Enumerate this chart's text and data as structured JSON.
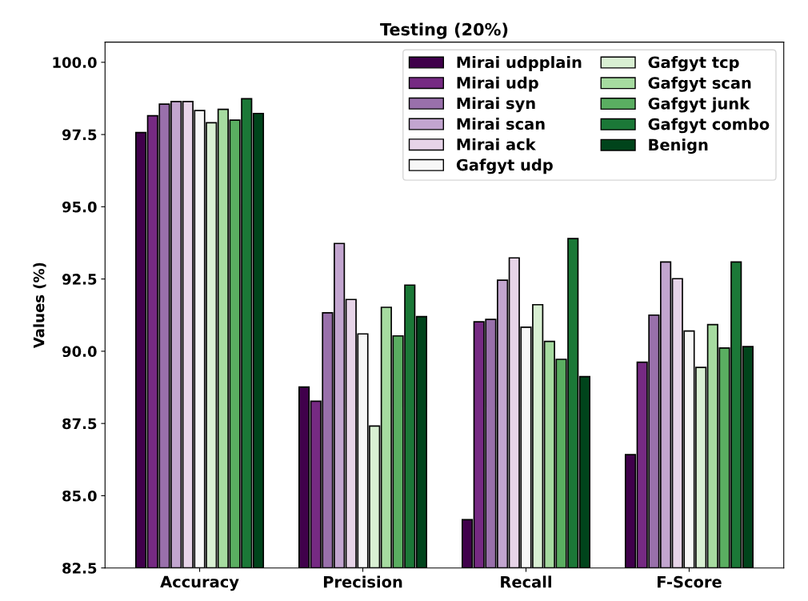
{
  "chart_data": {
    "type": "bar",
    "title": "Testing (20%)",
    "ylabel": "Values (%)",
    "categories": [
      "Accuracy",
      "Precision",
      "Recall",
      "F-Score"
    ],
    "ylim": [
      82.5,
      100.7
    ],
    "yticks": [
      {
        "value": 82.5,
        "label": "82.5"
      },
      {
        "value": 85.0,
        "label": "85.0"
      },
      {
        "value": 87.5,
        "label": "87.5"
      },
      {
        "value": 90.0,
        "label": "90.0"
      },
      {
        "value": 92.5,
        "label": "92.5"
      },
      {
        "value": 95.0,
        "label": "95.0"
      },
      {
        "value": 97.5,
        "label": "97.5"
      },
      {
        "value": 100.0,
        "label": "100.0"
      }
    ],
    "grid": false,
    "legend": "top right",
    "series": [
      {
        "name": "Mirai udpplain",
        "color": "#40004b",
        "values": [
          97.57,
          88.76,
          84.17,
          86.42
        ]
      },
      {
        "name": "Mirai udp",
        "color": "#762a83",
        "values": [
          98.15,
          88.27,
          91.02,
          89.62
        ]
      },
      {
        "name": "Mirai syn",
        "color": "#9970ab",
        "values": [
          98.55,
          91.33,
          91.1,
          91.25
        ]
      },
      {
        "name": "Mirai scan",
        "color": "#c2a5cf",
        "values": [
          98.64,
          93.73,
          92.46,
          93.09
        ]
      },
      {
        "name": "Mirai ack",
        "color": "#e7d4e8",
        "values": [
          98.64,
          91.79,
          93.23,
          92.51
        ]
      },
      {
        "name": "Gafgyt udp",
        "color": "#f7f7f7",
        "values": [
          98.33,
          90.6,
          90.83,
          90.7
        ]
      },
      {
        "name": "Gafgyt tcp",
        "color": "#d9f0d3",
        "values": [
          97.91,
          87.41,
          91.61,
          89.44
        ]
      },
      {
        "name": "Gafgyt scan",
        "color": "#a6dba0",
        "values": [
          98.37,
          91.52,
          90.34,
          90.92
        ]
      },
      {
        "name": "Gafgyt junk",
        "color": "#5aae61",
        "values": [
          98.0,
          90.53,
          89.72,
          90.11
        ]
      },
      {
        "name": "Gafgyt combo",
        "color": "#1b7837",
        "values": [
          98.74,
          92.29,
          93.9,
          93.09
        ]
      },
      {
        "name": "Benign",
        "color": "#00441b",
        "values": [
          98.23,
          91.2,
          89.12,
          90.16
        ]
      }
    ]
  }
}
